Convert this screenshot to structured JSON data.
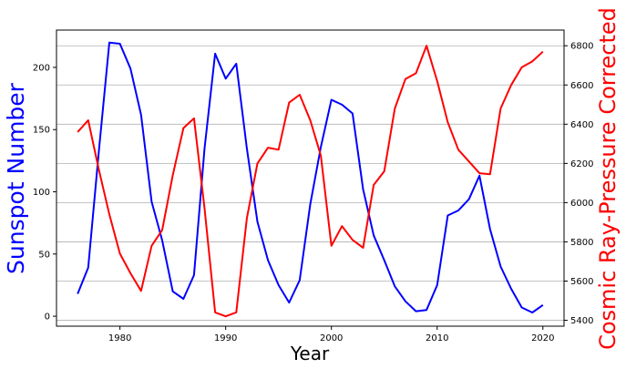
{
  "chart_data": {
    "type": "line",
    "title": "",
    "xlabel": "Year",
    "ylabel_left": "Sunspot Number",
    "ylabel_right": "Cosmic Ray-Pressure Corrected",
    "xlim": [
      1974,
      2022
    ],
    "ylim_left": [
      -8,
      230
    ],
    "ylim_right": [
      5370,
      6880
    ],
    "x_ticks": [
      1980,
      1990,
      2000,
      2010,
      2020
    ],
    "y_ticks_left": [
      0,
      50,
      100,
      150,
      200
    ],
    "y_ticks_right": [
      5400,
      5600,
      5800,
      6000,
      6200,
      6400,
      6600,
      6800
    ],
    "grid": "horizontal (right axis)",
    "colors": {
      "left": "#0000ff",
      "right": "#ff0000"
    },
    "x": [
      1976,
      1977,
      1978,
      1979,
      1980,
      1981,
      1982,
      1983,
      1984,
      1985,
      1986,
      1987,
      1988,
      1989,
      1990,
      1991,
      1992,
      1993,
      1994,
      1995,
      1996,
      1997,
      1998,
      1999,
      2000,
      2001,
      2002,
      2003,
      2004,
      2005,
      2006,
      2007,
      2008,
      2009,
      2010,
      2011,
      2012,
      2013,
      2014,
      2015,
      2016,
      2017,
      2018,
      2019,
      2020
    ],
    "series": [
      {
        "axis": "left",
        "values": [
          18,
          39,
          132,
          220,
          219,
          199,
          162,
          92,
          61,
          20,
          14,
          33,
          135,
          211,
          191,
          203,
          135,
          76,
          45,
          25,
          11,
          29,
          90,
          136,
          174,
          170,
          163,
          102,
          65,
          45,
          24,
          12,
          4,
          5,
          25,
          81,
          85,
          94,
          113,
          70,
          40,
          22,
          7,
          3,
          9
        ]
      },
      {
        "axis": "right",
        "values": [
          6360,
          6420,
          6170,
          5940,
          5740,
          5640,
          5550,
          5780,
          5860,
          6140,
          6380,
          6430,
          5970,
          5440,
          5420,
          5440,
          5920,
          6200,
          6280,
          6270,
          6510,
          6550,
          6420,
          6240,
          5780,
          5880,
          5810,
          5770,
          6090,
          6160,
          6480,
          6630,
          6660,
          6800,
          6620,
          6410,
          6270,
          6210,
          6150,
          6145,
          6480,
          6600,
          6690,
          6720,
          6770
        ]
      }
    ]
  }
}
